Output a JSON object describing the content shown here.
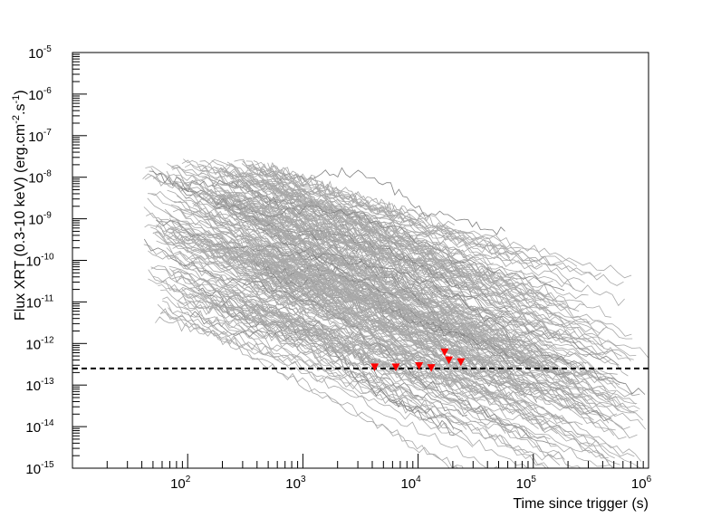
{
  "chart_data": {
    "type": "line",
    "xlabel": "Time since trigger (s)",
    "ylabel_parts": [
      "Flux XRT (0.3-10 keV) (erg.cm",
      "-2",
      ".s",
      "-1",
      ")"
    ],
    "x_scale": "log",
    "y_scale": "log",
    "xlim": [
      10,
      1000000
    ],
    "ylim": [
      1e-15,
      1e-05
    ],
    "x_ticks": [
      {
        "value": 100,
        "base": "10",
        "exp": "2"
      },
      {
        "value": 1000,
        "base": "10",
        "exp": "3"
      },
      {
        "value": 10000,
        "base": "10",
        "exp": "4"
      },
      {
        "value": 100000,
        "base": "10",
        "exp": "5"
      },
      {
        "value": 1000000,
        "base": "10",
        "exp": "6"
      }
    ],
    "y_ticks": [
      {
        "value": 1e-15,
        "base": "10",
        "exp": "-15"
      },
      {
        "value": 1e-14,
        "base": "10",
        "exp": "-14"
      },
      {
        "value": 1e-13,
        "base": "10",
        "exp": "-13"
      },
      {
        "value": 1e-12,
        "base": "10",
        "exp": "-12"
      },
      {
        "value": 1e-11,
        "base": "10",
        "exp": "-11"
      },
      {
        "value": 1e-10,
        "base": "10",
        "exp": "-10"
      },
      {
        "value": 1e-09,
        "base": "10",
        "exp": "-9"
      },
      {
        "value": 1e-08,
        "base": "10",
        "exp": "-8"
      },
      {
        "value": 1e-07,
        "base": "10",
        "exp": "-7"
      },
      {
        "value": 1e-06,
        "base": "10",
        "exp": "-6"
      },
      {
        "value": 1e-05,
        "base": "10",
        "exp": "-5"
      }
    ],
    "grid": false,
    "legend": "none",
    "threshold_line": {
      "y": 2.5e-13,
      "style": "dashed",
      "color": "#000000"
    },
    "background_curves": {
      "description_color": "#a8a8a8",
      "count": 260,
      "x_start_range": [
        40,
        600
      ],
      "x_end_range": [
        3000,
        1000000
      ],
      "y_start_log_range": [
        -11.5,
        -7.6
      ],
      "slope_range": [
        -1.55,
        -0.7
      ]
    },
    "upper_limits": {
      "color": "#ff0000",
      "marker": "down-triangle",
      "points": [
        {
          "x": 4200,
          "y": 2.7e-13
        },
        {
          "x": 6400,
          "y": 2.7e-13
        },
        {
          "x": 10200,
          "y": 2.9e-13
        },
        {
          "x": 13000,
          "y": 2.6e-13
        },
        {
          "x": 17000,
          "y": 6.2e-13
        },
        {
          "x": 18500,
          "y": 4e-13
        },
        {
          "x": 23500,
          "y": 3.6e-13
        }
      ]
    },
    "colors": {
      "curves": "#a8a8a8",
      "curves_dark": "#808080",
      "limits": "#ff0000",
      "threshold": "#000000"
    }
  }
}
